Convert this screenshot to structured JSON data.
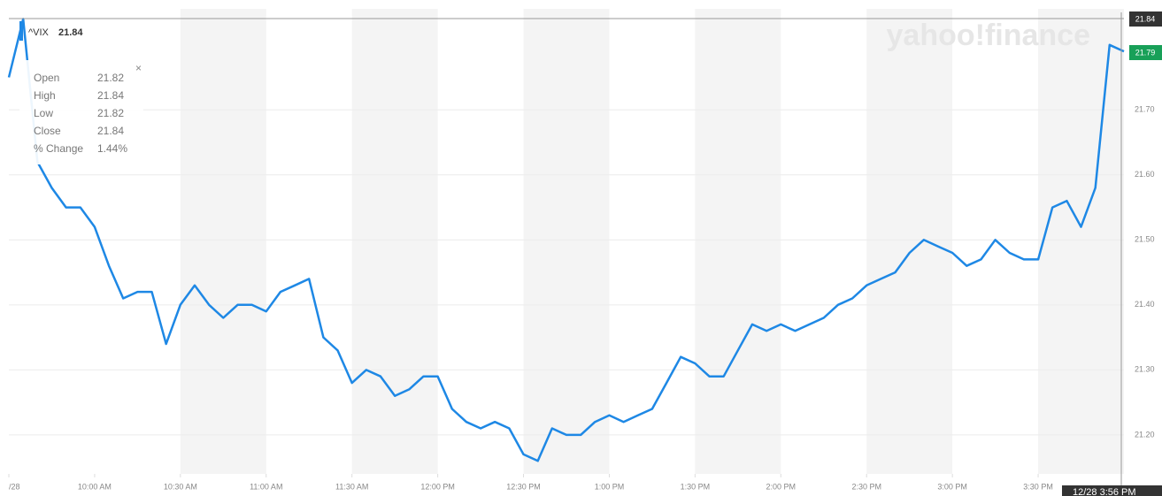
{
  "chart_data": {
    "type": "line",
    "watermark": "yahoo!finance",
    "symbol": "^VIX",
    "symbol_value": "21.84",
    "tooltip": [
      {
        "label": "Open",
        "value": "21.82"
      },
      {
        "label": "High",
        "value": "21.84"
      },
      {
        "label": "Low",
        "value": "21.82"
      },
      {
        "label": "Close",
        "value": "21.84"
      },
      {
        "label": "% Change",
        "value": "1.44%"
      }
    ],
    "crosshair_price": "21.84",
    "last_price": "21.79",
    "crosshair_time": "12/28 3:56 PM",
    "x": [
      "09:30",
      "09:35",
      "09:40",
      "09:45",
      "09:50",
      "09:55",
      "10:00",
      "10:05",
      "10:10",
      "10:15",
      "10:20",
      "10:25",
      "10:30",
      "10:35",
      "10:40",
      "10:45",
      "10:50",
      "10:55",
      "11:00",
      "11:05",
      "11:10",
      "11:15",
      "11:20",
      "11:25",
      "11:30",
      "11:35",
      "11:40",
      "11:45",
      "11:50",
      "11:55",
      "12:00",
      "12:05",
      "12:10",
      "12:15",
      "12:20",
      "12:25",
      "12:30",
      "12:35",
      "12:40",
      "12:45",
      "12:50",
      "12:55",
      "13:00",
      "13:05",
      "13:10",
      "13:15",
      "13:20",
      "13:25",
      "13:30",
      "13:35",
      "13:40",
      "13:45",
      "13:50",
      "13:55",
      "14:00",
      "14:05",
      "14:10",
      "14:15",
      "14:20",
      "14:25",
      "14:30",
      "14:35",
      "14:40",
      "14:45",
      "14:50",
      "14:55",
      "15:00",
      "15:05",
      "15:10",
      "15:15",
      "15:20",
      "15:25",
      "15:30",
      "15:35",
      "15:40",
      "15:45",
      "15:50",
      "15:55",
      "16:00"
    ],
    "series": [
      {
        "name": "^VIX",
        "color": "#1e88e5",
        "values": [
          21.75,
          21.84,
          21.62,
          21.58,
          21.55,
          21.55,
          21.52,
          21.46,
          21.41,
          21.42,
          21.42,
          21.34,
          21.4,
          21.43,
          21.4,
          21.38,
          21.4,
          21.4,
          21.39,
          21.42,
          21.43,
          21.44,
          21.35,
          21.33,
          21.28,
          21.3,
          21.29,
          21.26,
          21.27,
          21.29,
          21.29,
          21.24,
          21.22,
          21.21,
          21.22,
          21.21,
          21.17,
          21.16,
          21.21,
          21.2,
          21.2,
          21.22,
          21.23,
          21.22,
          21.23,
          21.24,
          21.28,
          21.32,
          21.31,
          21.29,
          21.29,
          21.33,
          21.37,
          21.36,
          21.37,
          21.36,
          21.37,
          21.38,
          21.4,
          21.41,
          21.43,
          21.44,
          21.45,
          21.48,
          21.5,
          21.49,
          21.48,
          21.46,
          21.47,
          21.5,
          21.48,
          21.47,
          21.47,
          21.55,
          21.56,
          21.52,
          21.58,
          21.8,
          21.79
        ]
      }
    ],
    "xlim": [
      "09:30",
      "16:00"
    ],
    "xticks": [
      {
        "value": "09:30",
        "label": "/28"
      },
      {
        "value": "10:00",
        "label": "10:00 AM"
      },
      {
        "value": "10:30",
        "label": "10:30 AM"
      },
      {
        "value": "11:00",
        "label": "11:00 AM"
      },
      {
        "value": "11:30",
        "label": "11:30 AM"
      },
      {
        "value": "12:00",
        "label": "12:00 PM"
      },
      {
        "value": "12:30",
        "label": "12:30 PM"
      },
      {
        "value": "13:00",
        "label": "1:00 PM"
      },
      {
        "value": "13:30",
        "label": "1:30 PM"
      },
      {
        "value": "14:00",
        "label": "2:00 PM"
      },
      {
        "value": "14:30",
        "label": "2:30 PM"
      },
      {
        "value": "15:00",
        "label": "3:00 PM"
      },
      {
        "value": "15:30",
        "label": "3:30 PM"
      }
    ],
    "ylim": [
      21.14,
      21.85
    ],
    "yticks": [
      {
        "value": 21.2,
        "label": "21.20"
      },
      {
        "value": 21.3,
        "label": "21.30"
      },
      {
        "value": 21.4,
        "label": "21.40"
      },
      {
        "value": 21.5,
        "label": "21.50"
      },
      {
        "value": 21.6,
        "label": "21.60"
      },
      {
        "value": 21.7,
        "label": "21.70"
      }
    ],
    "grid": true
  }
}
